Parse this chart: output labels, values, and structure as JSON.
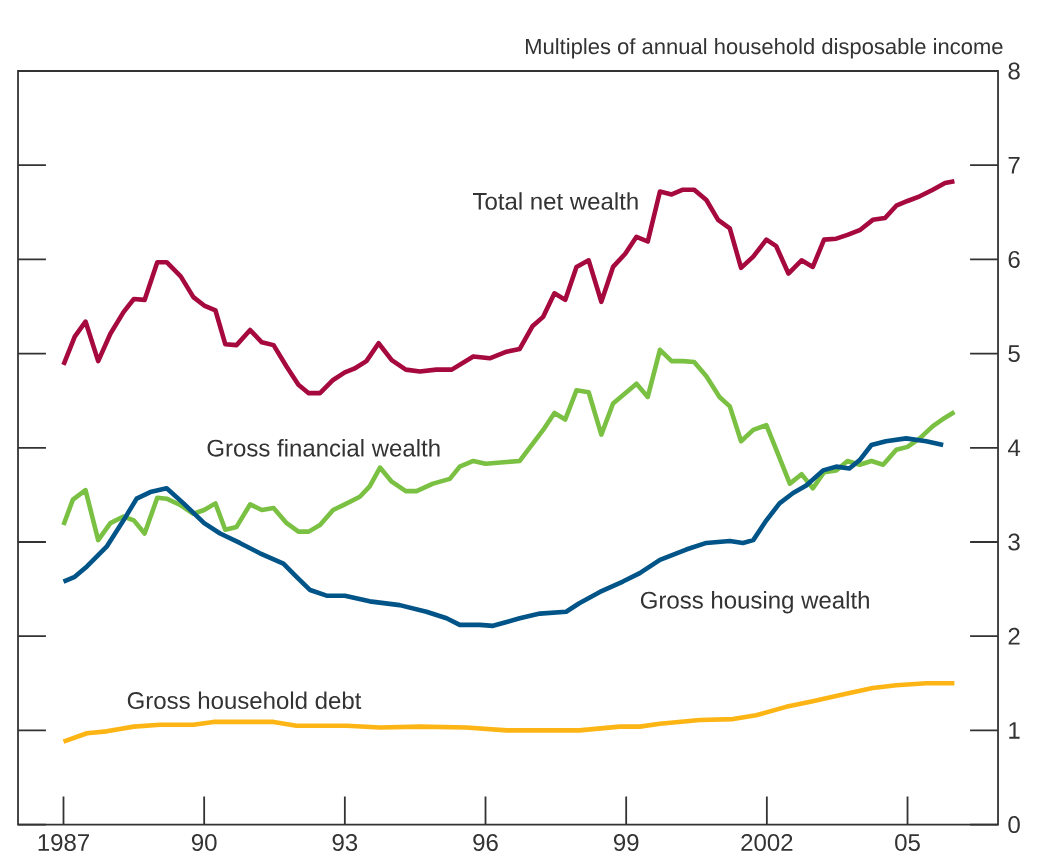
{
  "chart_data": {
    "type": "line",
    "ylabel": "Multiples of annual household disposable income",
    "xlim": [
      1986.03,
      2006.93
    ],
    "ylim": [
      0,
      8
    ],
    "yticks": [
      0,
      1,
      2,
      3,
      4,
      5,
      6,
      7,
      8
    ],
    "xticks": [
      {
        "value": 1987,
        "label": "1987"
      },
      {
        "value": 1990,
        "label": "90"
      },
      {
        "value": 1993,
        "label": "93"
      },
      {
        "value": 1996,
        "label": "96"
      },
      {
        "value": 1999,
        "label": "99"
      },
      {
        "value": 2002,
        "label": "2002"
      },
      {
        "value": 2005,
        "label": "05"
      }
    ],
    "marker": "none",
    "line_style": "solid",
    "series": [
      {
        "name": "Total net wealth",
        "color": "#a6093d",
        "x": [
          1987.0,
          1987.24,
          1987.47,
          1987.74,
          1988.0,
          1988.28,
          1988.5,
          1988.73,
          1989.0,
          1989.2,
          1989.5,
          1989.77,
          1990.0,
          1990.24,
          1990.45,
          1990.69,
          1990.98,
          1991.23,
          1991.48,
          1991.76,
          1992.01,
          1992.23,
          1992.47,
          1992.75,
          1993.0,
          1993.2,
          1993.46,
          1993.72,
          1994.0,
          1994.3,
          1994.6,
          1994.95,
          1995.28,
          1995.74,
          1996.09,
          1996.45,
          1996.73,
          1997.0,
          1997.23,
          1997.47,
          1997.7,
          1997.94,
          1998.2,
          1998.47,
          1998.72,
          1998.98,
          1999.22,
          1999.46,
          1999.72,
          1999.97,
          2000.21,
          2000.45,
          2000.71,
          2000.96,
          2001.21,
          2001.45,
          2001.71,
          2001.99,
          2002.2,
          2002.46,
          2002.74,
          2002.98,
          2003.22,
          2003.48,
          2003.72,
          2003.98,
          2004.26,
          2004.52,
          2004.76,
          2005.0,
          2005.26,
          2005.54,
          2005.8,
          2006.0
        ],
        "values": [
          4.88,
          5.18,
          5.34,
          4.92,
          5.21,
          5.44,
          5.58,
          5.57,
          5.97,
          5.97,
          5.82,
          5.6,
          5.51,
          5.46,
          5.1,
          5.09,
          5.25,
          5.12,
          5.09,
          4.86,
          4.67,
          4.58,
          4.58,
          4.72,
          4.8,
          4.84,
          4.92,
          5.11,
          4.93,
          4.83,
          4.81,
          4.83,
          4.83,
          4.97,
          4.95,
          5.02,
          5.05,
          5.29,
          5.39,
          5.64,
          5.57,
          5.92,
          5.99,
          5.55,
          5.92,
          6.06,
          6.24,
          6.19,
          6.72,
          6.69,
          6.74,
          6.74,
          6.63,
          6.42,
          6.33,
          5.91,
          6.03,
          6.21,
          6.14,
          5.85,
          5.99,
          5.92,
          6.21,
          6.22,
          6.26,
          6.31,
          6.42,
          6.44,
          6.57,
          6.62,
          6.67,
          6.74,
          6.81,
          6.83
        ]
      },
      {
        "name": "Gross financial wealth",
        "color": "#7ac143",
        "x": [
          1987.0,
          1987.2,
          1987.47,
          1987.74,
          1988.0,
          1988.28,
          1988.5,
          1988.73,
          1989.0,
          1989.2,
          1989.5,
          1989.77,
          1990.0,
          1990.24,
          1990.45,
          1990.69,
          1990.98,
          1991.23,
          1991.48,
          1991.76,
          1992.01,
          1992.23,
          1992.47,
          1992.75,
          1993.0,
          1993.32,
          1993.53,
          1993.75,
          1994.0,
          1994.3,
          1994.53,
          1994.88,
          1995.24,
          1995.45,
          1995.74,
          1996.0,
          1996.45,
          1996.73,
          1997.23,
          1997.47,
          1997.7,
          1997.94,
          1998.2,
          1998.47,
          1998.72,
          1998.98,
          1999.22,
          1999.46,
          1999.72,
          1999.97,
          2000.21,
          2000.45,
          2000.71,
          2000.99,
          2001.21,
          2001.45,
          2001.71,
          2001.99,
          2002.2,
          2002.49,
          2002.74,
          2002.98,
          2003.22,
          2003.48,
          2003.72,
          2003.98,
          2004.23,
          2004.48,
          2004.76,
          2005.0,
          2005.26,
          2005.54,
          2005.8,
          2006.0
        ],
        "values": [
          3.18,
          3.45,
          3.55,
          3.02,
          3.2,
          3.27,
          3.23,
          3.09,
          3.47,
          3.46,
          3.39,
          3.3,
          3.34,
          3.41,
          3.13,
          3.16,
          3.4,
          3.34,
          3.36,
          3.2,
          3.11,
          3.11,
          3.18,
          3.34,
          3.4,
          3.48,
          3.59,
          3.79,
          3.64,
          3.54,
          3.54,
          3.62,
          3.67,
          3.8,
          3.86,
          3.83,
          3.85,
          3.86,
          4.19,
          4.37,
          4.3,
          4.61,
          4.59,
          4.14,
          4.47,
          4.58,
          4.68,
          4.54,
          5.04,
          4.92,
          4.92,
          4.91,
          4.76,
          4.54,
          4.44,
          4.07,
          4.19,
          4.24,
          3.98,
          3.62,
          3.72,
          3.57,
          3.74,
          3.76,
          3.86,
          3.82,
          3.86,
          3.82,
          3.98,
          4.01,
          4.1,
          4.23,
          4.32,
          4.38
        ]
      },
      {
        "name": "Gross housing wealth",
        "color": "#005487",
        "x": [
          1987.0,
          1987.24,
          1987.5,
          1987.92,
          1988.28,
          1988.56,
          1988.85,
          1989.2,
          1989.56,
          1990.0,
          1990.34,
          1990.76,
          1991.19,
          1991.69,
          1991.97,
          1992.26,
          1992.61,
          1993.0,
          1993.53,
          1994.17,
          1994.74,
          1995.17,
          1995.45,
          1995.88,
          1996.16,
          1996.45,
          1996.73,
          1997.16,
          1997.72,
          1998.0,
          1998.44,
          1998.93,
          1999.29,
          1999.72,
          2000.28,
          2000.71,
          2001.21,
          2001.49,
          2001.71,
          2001.99,
          2002.27,
          2002.56,
          2002.84,
          2003.2,
          2003.48,
          2003.76,
          2003.98,
          2004.23,
          2004.54,
          2004.97,
          2005.4,
          2005.76
        ],
        "values": [
          2.58,
          2.63,
          2.74,
          2.95,
          3.23,
          3.46,
          3.53,
          3.57,
          3.41,
          3.2,
          3.09,
          2.99,
          2.88,
          2.77,
          2.63,
          2.49,
          2.43,
          2.43,
          2.37,
          2.33,
          2.26,
          2.19,
          2.12,
          2.12,
          2.11,
          2.15,
          2.19,
          2.24,
          2.26,
          2.35,
          2.47,
          2.58,
          2.67,
          2.81,
          2.92,
          2.99,
          3.01,
          2.99,
          3.02,
          3.23,
          3.41,
          3.52,
          3.6,
          3.76,
          3.8,
          3.78,
          3.87,
          4.03,
          4.07,
          4.1,
          4.07,
          4.03
        ]
      },
      {
        "name": "Gross household debt",
        "color": "#fdb515",
        "x": [
          1987.0,
          1987.5,
          1987.92,
          1988.5,
          1989.06,
          1989.77,
          1990.2,
          1991.48,
          1991.97,
          1993.04,
          1993.75,
          1994.6,
          1995.59,
          1996.45,
          1996.73,
          1998.0,
          1998.86,
          1999.29,
          1999.72,
          2000.57,
          2001.28,
          2001.77,
          2002.41,
          2002.98,
          2003.69,
          2004.26,
          2004.76,
          2005.4,
          2006.0
        ],
        "values": [
          0.88,
          0.97,
          0.99,
          1.04,
          1.06,
          1.06,
          1.09,
          1.09,
          1.05,
          1.05,
          1.03,
          1.04,
          1.03,
          1.0,
          1.0,
          1.0,
          1.04,
          1.04,
          1.07,
          1.11,
          1.12,
          1.16,
          1.25,
          1.31,
          1.39,
          1.45,
          1.48,
          1.5,
          1.5
        ]
      }
    ]
  }
}
